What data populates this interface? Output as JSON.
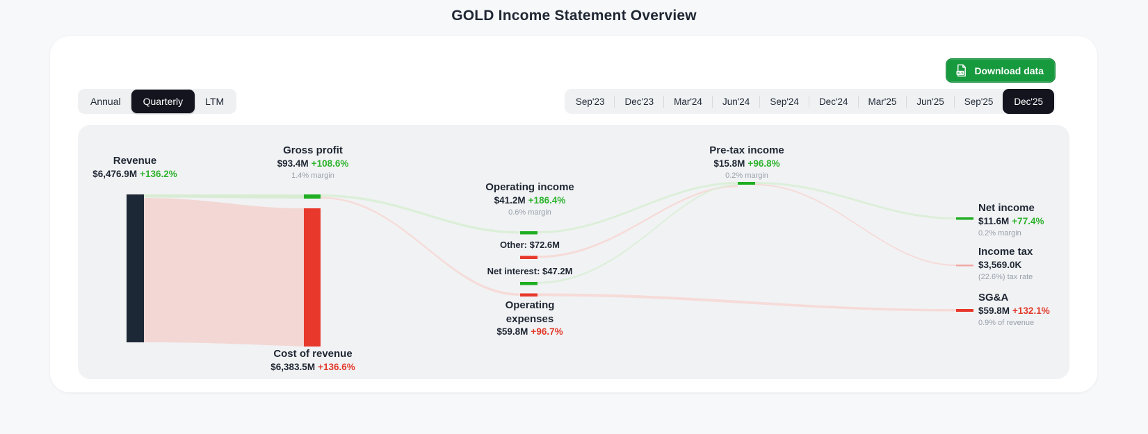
{
  "page": {
    "title": "GOLD Income Statement Overview"
  },
  "toolbar": {
    "download_label": "Download data",
    "download_icon_badge": "XLS"
  },
  "view_tabs": {
    "items": [
      {
        "label": "Annual",
        "selected": false
      },
      {
        "label": "Quarterly",
        "selected": true
      },
      {
        "label": "LTM",
        "selected": false
      }
    ]
  },
  "periods": {
    "items": [
      {
        "label": "Sep'23",
        "selected": false
      },
      {
        "label": "Dec'23",
        "selected": false
      },
      {
        "label": "Mar'24",
        "selected": false
      },
      {
        "label": "Jun'24",
        "selected": false
      },
      {
        "label": "Sep'24",
        "selected": false
      },
      {
        "label": "Dec'24",
        "selected": false
      },
      {
        "label": "Mar'25",
        "selected": false
      },
      {
        "label": "Jun'25",
        "selected": false
      },
      {
        "label": "Sep'25",
        "selected": false
      },
      {
        "label": "Dec'25",
        "selected": true
      }
    ]
  },
  "sankey": {
    "revenue": {
      "title": "Revenue",
      "value": "$6,476.9M",
      "change": "+136.2%"
    },
    "gross_profit": {
      "title": "Gross profit",
      "value": "$93.4M",
      "change": "+108.6%",
      "sub": "1.4% margin"
    },
    "cost_of_revenue": {
      "title": "Cost of revenue",
      "value": "$6,383.5M",
      "change": "+136.6%"
    },
    "operating_income": {
      "title": "Operating income",
      "value": "$41.2M",
      "change": "+186.4%",
      "sub": "0.6% margin"
    },
    "other": {
      "label": "Other: $72.6M"
    },
    "net_interest": {
      "label": "Net interest: $47.2M"
    },
    "operating_expenses": {
      "title": "Operating expenses",
      "value": "$59.8M",
      "change": "+96.7%"
    },
    "pretax_income": {
      "title": "Pre-tax income",
      "value": "$15.8M",
      "change": "+96.8%",
      "sub": "0.2% margin"
    },
    "net_income": {
      "title": "Net income",
      "value": "$11.6M",
      "change": "+77.4%",
      "sub": "0.2% margin"
    },
    "income_tax": {
      "title": "Income tax",
      "value": "$3,569.0K",
      "sub": "(22.6%) tax rate"
    },
    "sga": {
      "title": "SG&A",
      "value": "$59.8M",
      "change": "+132.1%",
      "sub": "0.9% of revenue"
    }
  },
  "colors": {
    "positive_green": "#2db32d",
    "negative_red": "#e23a2a",
    "node_dark": "#1d2836",
    "node_green": "#1fae22",
    "node_red": "#e8382b",
    "flow_pink": "#f3d7d4",
    "flow_green": "#dcefd9",
    "button_green": "#17993e",
    "selected_chip": "#14141f",
    "panel_bg": "#f1f2f4"
  },
  "chart_data": {
    "type": "sankey",
    "title": "GOLD Income Statement Overview",
    "period_granularity": "Quarterly",
    "selected_period": "Dec'25",
    "units": "USD",
    "nodes": [
      {
        "name": "Revenue",
        "value_musd": 6476.9,
        "change_pct": 136.2
      },
      {
        "name": "Gross profit",
        "value_musd": 93.4,
        "change_pct": 108.6,
        "margin_pct": 1.4
      },
      {
        "name": "Cost of revenue",
        "value_musd": 6383.5,
        "change_pct": 136.6
      },
      {
        "name": "Operating income",
        "value_musd": 41.2,
        "change_pct": 186.4,
        "margin_pct": 0.6
      },
      {
        "name": "Other",
        "value_musd": 72.6
      },
      {
        "name": "Net interest",
        "value_musd": 47.2
      },
      {
        "name": "Operating expenses",
        "value_musd": 59.8,
        "change_pct": 96.7
      },
      {
        "name": "Pre-tax income",
        "value_musd": 15.8,
        "change_pct": 96.8,
        "margin_pct": 0.2
      },
      {
        "name": "Net income",
        "value_musd": 11.6,
        "change_pct": 77.4,
        "margin_pct": 0.2
      },
      {
        "name": "Income tax",
        "value_musd": 3.569,
        "tax_rate_pct": 22.6
      },
      {
        "name": "SG&A",
        "value_musd": 59.8,
        "change_pct": 132.1,
        "pct_of_revenue": 0.9
      }
    ],
    "links": [
      {
        "source": "Revenue",
        "target": "Gross profit",
        "value_musd": 93.4
      },
      {
        "source": "Revenue",
        "target": "Cost of revenue",
        "value_musd": 6383.5
      },
      {
        "source": "Gross profit",
        "target": "Operating income",
        "value_musd": 41.2
      },
      {
        "source": "Gross profit",
        "target": "Operating expenses",
        "value_musd": 59.8
      },
      {
        "source": "Operating income",
        "target": "Pre-tax income",
        "value_musd": 41.2
      },
      {
        "source": "Net interest",
        "target": "Pre-tax income",
        "value_musd": 47.2
      },
      {
        "source": "Pre-tax income",
        "target": "Other",
        "value_musd": 72.6
      },
      {
        "source": "Pre-tax income",
        "target": "Net income",
        "value_musd": 11.6
      },
      {
        "source": "Pre-tax income",
        "target": "Income tax",
        "value_musd": 3.569
      },
      {
        "source": "Operating expenses",
        "target": "SG&A",
        "value_musd": 59.8
      }
    ]
  }
}
